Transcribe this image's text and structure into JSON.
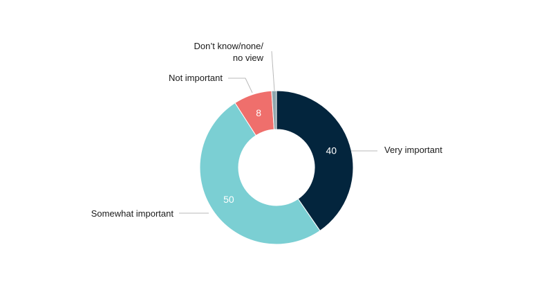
{
  "chart_data": {
    "type": "pie",
    "variant": "donut",
    "title": "",
    "legend": "none",
    "slices": [
      {
        "label": "Very important",
        "value": 40,
        "color": "#03253d"
      },
      {
        "label": "Somewhat important",
        "value": 50,
        "color": "#7bcfd3"
      },
      {
        "label": "Not important",
        "value": 8,
        "color": "#ef6f6c"
      },
      {
        "label": "Don’t know/none/ no view",
        "lines": [
          "Don’t know/none/",
          "no view"
        ],
        "value": 1,
        "color": "#8fa6ad"
      }
    ]
  }
}
